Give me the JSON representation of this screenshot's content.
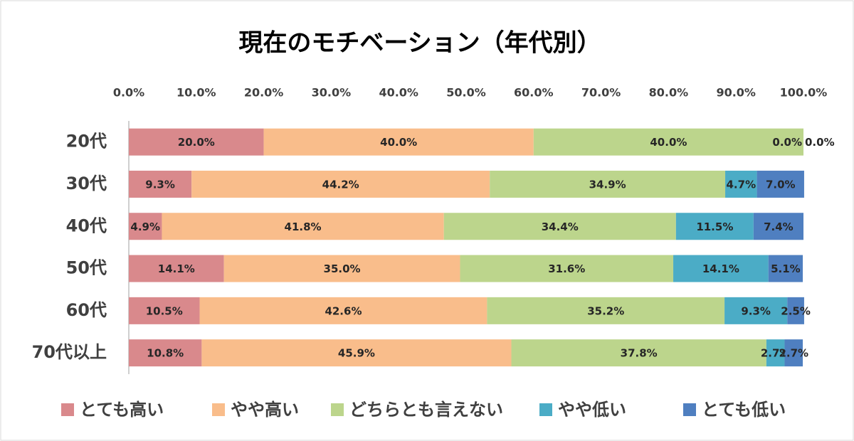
{
  "chart_data": {
    "type": "stacked-barh",
    "title": "現在のモチベーション（年代別）",
    "categories": [
      "20代",
      "30代",
      "40代",
      "50代",
      "60代",
      "70代以上"
    ],
    "series": [
      {
        "name": "とても高い",
        "color": "#d9898c",
        "values": [
          20.0,
          9.3,
          4.9,
          14.1,
          10.5,
          10.8
        ],
        "value_labels": [
          "20.0%",
          "9.3%",
          "4.9%",
          "14.1%",
          "10.5%",
          "10.8%"
        ]
      },
      {
        "name": "やや高い",
        "color": "#f9bd8b",
        "values": [
          40.0,
          44.2,
          41.8,
          35.0,
          42.6,
          45.9
        ],
        "value_labels": [
          "40.0%",
          "44.2%",
          "41.8%",
          "35.0%",
          "42.6%",
          "45.9%"
        ]
      },
      {
        "name": "どちらとも言えない",
        "color": "#bcd58c",
        "values": [
          40.0,
          34.9,
          34.4,
          31.6,
          35.2,
          37.8
        ],
        "value_labels": [
          "40.0%",
          "34.9%",
          "34.4%",
          "31.6%",
          "35.2%",
          "37.8%"
        ]
      },
      {
        "name": "やや低い",
        "color": "#4bacc6",
        "values": [
          0.0,
          4.7,
          11.5,
          14.1,
          9.3,
          2.7
        ],
        "value_labels": [
          "0.0%",
          "4.7%",
          "11.5%",
          "14.1%",
          "9.3%",
          "2.7%"
        ]
      },
      {
        "name": "とても低い",
        "color": "#4f7fc0",
        "values": [
          0.0,
          7.0,
          7.4,
          5.1,
          2.5,
          2.7
        ],
        "value_labels": [
          "0.0%",
          "7.0%",
          "7.4%",
          "5.1%",
          "2.5%",
          "2.7%"
        ]
      }
    ],
    "xlim": [
      0,
      100
    ],
    "xticks": [
      {
        "value": 0,
        "label": "0.0%"
      },
      {
        "value": 10,
        "label": "10.0%"
      },
      {
        "value": 20,
        "label": "20.0%"
      },
      {
        "value": 30,
        "label": "30.0%"
      },
      {
        "value": 40,
        "label": "40.0%"
      },
      {
        "value": 50,
        "label": "50.0%"
      },
      {
        "value": 60,
        "label": "60.0%"
      },
      {
        "value": 70,
        "label": "70.0%"
      },
      {
        "value": 80,
        "label": "80.0%"
      },
      {
        "value": 90,
        "label": "90.0%"
      },
      {
        "value": 100,
        "label": "100.0%"
      }
    ],
    "legend": "bottom"
  }
}
